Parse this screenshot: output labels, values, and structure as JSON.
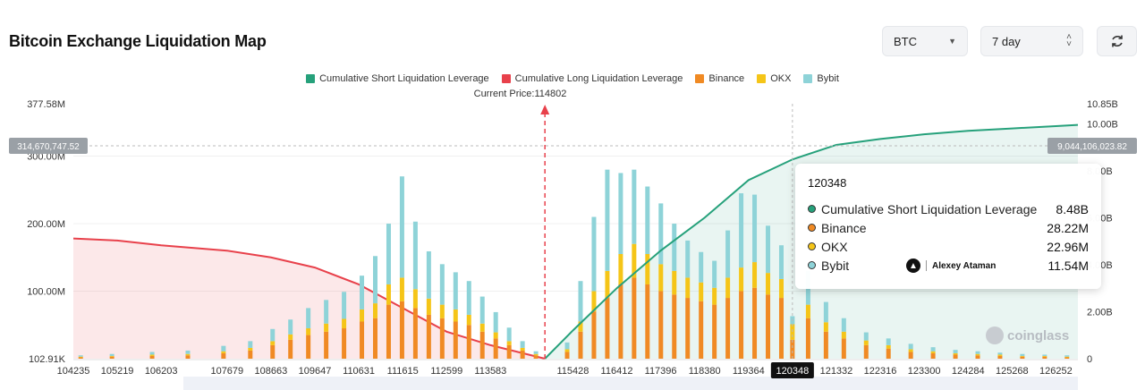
{
  "header": {
    "title": "Bitcoin Exchange Liquidation Map",
    "asset_select": "BTC",
    "range_select": "7 day",
    "refresh_icon": "refresh-icon"
  },
  "legend": [
    {
      "label": "Cumulative Short Liquidation Leverage",
      "color": "#26a17b"
    },
    {
      "label": "Cumulative Long Liquidation Leverage",
      "color": "#e8414b"
    },
    {
      "label": "Binance",
      "color": "#f08a24"
    },
    {
      "label": "OKX",
      "color": "#f5c518"
    },
    {
      "label": "Bybit",
      "color": "#8ed3d8"
    }
  ],
  "current_price_label": "Current Price:114802",
  "crosshair": {
    "left_value": "314,670,747.52",
    "right_value": "9,044,106,023.82",
    "x_label": "120348"
  },
  "tooltip": {
    "title": "120348",
    "rows": [
      {
        "label": "Cumulative Short Liquidation Leverage",
        "value": "8.48B",
        "color": "#26a17b"
      },
      {
        "label": "Binance",
        "value": "28.22M",
        "color": "#f08a24"
      },
      {
        "label": "OKX",
        "value": "22.96M",
        "color": "#f5c518"
      },
      {
        "label": "Bybit",
        "value": "11.54M",
        "color": "#8ed3d8"
      }
    ],
    "author": "Alexey Ataman"
  },
  "watermark": "coinglass",
  "chart_data": {
    "type": "bar",
    "x_ticks": [
      "104235",
      "105219",
      "106203",
      "107679",
      "108663",
      "109647",
      "110631",
      "111615",
      "112599",
      "113583",
      "115428",
      "116412",
      "117396",
      "118380",
      "119364",
      "120348",
      "121332",
      "122316",
      "123300",
      "124284",
      "125268",
      "126252"
    ],
    "x_range": [
      104235,
      126745
    ],
    "current_price": 114802,
    "left_axis_ticks": [
      "377.58M",
      "300.00M",
      "200.00M",
      "100.00M",
      "102.91K"
    ],
    "left_axis_range": [
      0,
      377580000
    ],
    "right_axis_ticks": [
      "10.85B",
      "10.00B",
      "8.00B",
      "6.00B",
      "4.00B",
      "2.00B",
      "0"
    ],
    "right_axis_range": [
      0,
      10850000000
    ],
    "series": [
      {
        "name": "Binance",
        "stack": "bars",
        "x": [
          104400,
          105100,
          106000,
          106800,
          107600,
          108200,
          108700,
          109100,
          109500,
          109900,
          110300,
          110700,
          111000,
          111300,
          111600,
          111900,
          112200,
          112500,
          112800,
          113100,
          113400,
          113700,
          114000,
          114300,
          114600,
          115300,
          115600,
          115900,
          116200,
          116500,
          116800,
          117100,
          117400,
          117700,
          118000,
          118300,
          118600,
          118900,
          119200,
          119500,
          119800,
          120100,
          120348,
          120700,
          121100,
          121500,
          122000,
          122500,
          123000,
          123500,
          124000,
          124500,
          125000,
          125500,
          126000,
          126500
        ],
        "values": [
          2,
          3,
          4,
          5,
          8,
          12,
          20,
          28,
          35,
          40,
          45,
          55,
          60,
          80,
          85,
          75,
          65,
          60,
          55,
          50,
          40,
          30,
          20,
          12,
          5,
          10,
          40,
          70,
          90,
          110,
          120,
          110,
          100,
          95,
          90,
          85,
          80,
          90,
          100,
          105,
          95,
          90,
          28,
          60,
          40,
          30,
          20,
          15,
          10,
          8,
          6,
          5,
          4,
          3,
          3,
          2
        ]
      },
      {
        "name": "OKX",
        "stack": "bars",
        "x": [
          104400,
          105100,
          106000,
          106800,
          107600,
          108200,
          108700,
          109100,
          109500,
          109900,
          110300,
          110700,
          111000,
          111300,
          111600,
          111900,
          112200,
          112500,
          112800,
          113100,
          113400,
          113700,
          114000,
          114300,
          114600,
          115300,
          115600,
          115900,
          116200,
          116500,
          116800,
          117100,
          117400,
          117700,
          118000,
          118300,
          118600,
          118900,
          119200,
          119500,
          119800,
          120100,
          120348,
          120700,
          121100,
          121500,
          122000,
          122500,
          123000,
          123500,
          124000,
          124500,
          125000,
          125500,
          126000,
          126500
        ],
        "values": [
          1,
          1,
          2,
          2,
          3,
          4,
          6,
          8,
          10,
          12,
          14,
          18,
          22,
          30,
          35,
          28,
          24,
          20,
          18,
          15,
          12,
          9,
          6,
          4,
          2,
          4,
          15,
          30,
          40,
          45,
          50,
          45,
          40,
          35,
          30,
          28,
          25,
          30,
          35,
          38,
          32,
          28,
          23,
          20,
          14,
          10,
          7,
          5,
          4,
          3,
          2,
          2,
          2,
          1,
          1,
          1
        ]
      },
      {
        "name": "Bybit",
        "stack": "bars",
        "x": [
          104400,
          105100,
          106000,
          106800,
          107600,
          108200,
          108700,
          109100,
          109500,
          109900,
          110300,
          110700,
          111000,
          111300,
          111600,
          111900,
          112200,
          112500,
          112800,
          113100,
          113400,
          113700,
          114000,
          114300,
          114600,
          115300,
          115600,
          115900,
          116200,
          116500,
          116800,
          117100,
          117400,
          117700,
          118000,
          118300,
          118600,
          118900,
          119200,
          119500,
          119800,
          120100,
          120348,
          120700,
          121100,
          121500,
          122000,
          122500,
          123000,
          123500,
          124000,
          124500,
          125000,
          125500,
          126000,
          126500
        ],
        "values": [
          2,
          3,
          4,
          5,
          8,
          10,
          18,
          22,
          30,
          35,
          40,
          50,
          70,
          90,
          150,
          100,
          70,
          60,
          55,
          50,
          40,
          30,
          20,
          10,
          4,
          10,
          60,
          110,
          150,
          120,
          110,
          100,
          90,
          70,
          55,
          45,
          40,
          70,
          110,
          100,
          70,
          50,
          12,
          50,
          30,
          20,
          12,
          10,
          8,
          6,
          5,
          4,
          3,
          3,
          2,
          2
        ]
      },
      {
        "name": "Cumulative Long Liquidation Leverage",
        "type": "area",
        "axis": "left",
        "x": [
          104235,
          105219,
          106203,
          107679,
          108663,
          109647,
          110631,
          111615,
          112599,
          113583,
          114802
        ],
        "values": [
          178000000,
          175000000,
          168000000,
          160000000,
          150000000,
          135000000,
          110000000,
          75000000,
          40000000,
          20000000,
          0
        ]
      },
      {
        "name": "Cumulative Short Liquidation Leverage",
        "type": "area",
        "axis": "right",
        "x": [
          114802,
          115428,
          116412,
          117396,
          118380,
          119364,
          120348,
          121332,
          122316,
          123300,
          124284,
          125268,
          126252,
          126745
        ],
        "values": [
          0,
          1200000000,
          3000000000,
          4600000000,
          6000000000,
          7600000000,
          8480000000,
          9100000000,
          9350000000,
          9550000000,
          9700000000,
          9800000000,
          9900000000,
          9950000000
        ]
      }
    ]
  }
}
